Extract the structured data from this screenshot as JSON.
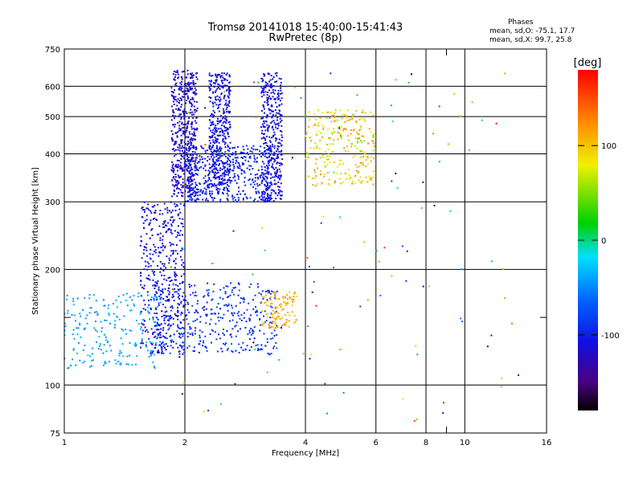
{
  "title": "Tromsø 20141018 15:40:00-15:41:43",
  "subtitle": "RwPretec (8p)",
  "phases": {
    "header": "Phases",
    "line_o": "mean, sd,O: -75.1, 17.7",
    "line_x": "mean, sd,X: 99.7, 25.8"
  },
  "colorbar": {
    "label": "[deg]",
    "ticks": [
      "100",
      "0",
      "-100"
    ],
    "tick_values": [
      100,
      0,
      -100
    ],
    "range": [
      -180,
      180
    ]
  },
  "chart_data": {
    "type": "scatter",
    "title": "Tromsø 20141018 15:40:00-15:41:43",
    "subtitle": "RwPretec (8p)",
    "xlabel": "Frequency [MHz]",
    "ylabel": "Stationary phase Virtual Height [km]",
    "xscale": "log",
    "yscale": "log",
    "xlim": [
      1,
      16
    ],
    "ylim": [
      75,
      750
    ],
    "xticks": [
      1,
      2,
      4,
      6,
      8,
      10,
      16
    ],
    "xtick_labels": [
      "1",
      "2",
      "4",
      "6",
      "8",
      "10",
      "16"
    ],
    "xminor": [
      9
    ],
    "yticks": [
      75,
      100,
      200,
      300,
      400,
      500,
      600,
      750
    ],
    "ytick_labels": [
      "75",
      "100",
      "200",
      "300",
      "400",
      "500",
      "600",
      "750"
    ],
    "yminor": [
      150
    ],
    "grid": true,
    "color_scale": "phase [deg], -180 (black) to 180 (red)",
    "clusters": [
      {
        "name": "low-frequency trace",
        "x": [
          1.0,
          1.75
        ],
        "y": [
          110,
          175
        ],
        "phase": [
          -50,
          -30
        ],
        "n": 220
      },
      {
        "name": "E/F1 rising trace",
        "x": [
          1.55,
          2.0
        ],
        "y": [
          120,
          300
        ],
        "phase": [
          -120,
          -100
        ],
        "n": 420
      },
      {
        "name": "lower band",
        "x": [
          1.7,
          3.4
        ],
        "y": [
          120,
          185
        ],
        "phase": [
          -110,
          -70
        ],
        "n": 380
      },
      {
        "name": "vertical column 1",
        "x": [
          1.85,
          2.15
        ],
        "y": [
          310,
          660
        ],
        "phase": [
          -130,
          -110
        ],
        "n": 520
      },
      {
        "name": "vertical column 2",
        "x": [
          2.3,
          2.6
        ],
        "y": [
          310,
          650
        ],
        "phase": [
          -120,
          -100
        ],
        "n": 420
      },
      {
        "name": "vertical column 3",
        "x": [
          3.1,
          3.5
        ],
        "y": [
          300,
          650
        ],
        "phase": [
          -120,
          -100
        ],
        "n": 400
      },
      {
        "name": "middle layer",
        "x": [
          2.0,
          3.3
        ],
        "y": [
          300,
          420
        ],
        "phase": [
          -110,
          -90
        ],
        "n": 420
      },
      {
        "name": "X-mode trace",
        "x": [
          3.1,
          3.8
        ],
        "y": [
          140,
          175
        ],
        "phase": [
          90,
          130
        ],
        "n": 110
      },
      {
        "name": "F2 cusp",
        "x": [
          4.0,
          6.0
        ],
        "y": [
          330,
          520
        ],
        "phase": [
          50,
          130
        ],
        "n": 260
      },
      {
        "name": "sparse",
        "x": [
          1.8,
          14
        ],
        "y": [
          80,
          650
        ],
        "phase": [
          -180,
          180
        ],
        "n": 120
      }
    ]
  }
}
